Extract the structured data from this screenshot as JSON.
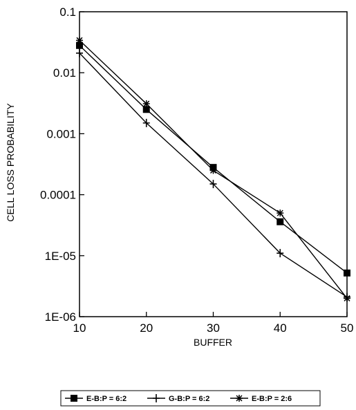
{
  "chart_data": {
    "type": "line",
    "xlabel": "BUFFER",
    "ylabel": "CELL LOSS PROBABILITY",
    "x": [
      10,
      20,
      30,
      40,
      50
    ],
    "xlim": [
      10,
      50
    ],
    "ylim": [
      1e-06,
      0.1
    ],
    "yscale": "log",
    "x_tick_labels": [
      "10",
      "20",
      "30",
      "40",
      "50"
    ],
    "y_tick_labels": [
      "1E-06",
      "1E-05",
      "0.0001",
      "0.001",
      "0.01",
      "0.1"
    ],
    "grid": false,
    "legend_position": "bottom",
    "series": [
      {
        "name": "E-B:P = 6:2",
        "marker": "square",
        "values": [
          0.028,
          0.0025,
          0.00028,
          3.6e-05,
          5.2e-06
        ]
      },
      {
        "name": "G-B:P = 6:2",
        "marker": "plus",
        "values": [
          0.021,
          0.0015,
          0.00015,
          1.1e-05,
          2.1e-06
        ]
      },
      {
        "name": "E-B:P = 2:6",
        "marker": "asterisk",
        "values": [
          0.034,
          0.0031,
          0.00025,
          5e-05,
          2e-06
        ]
      }
    ]
  }
}
